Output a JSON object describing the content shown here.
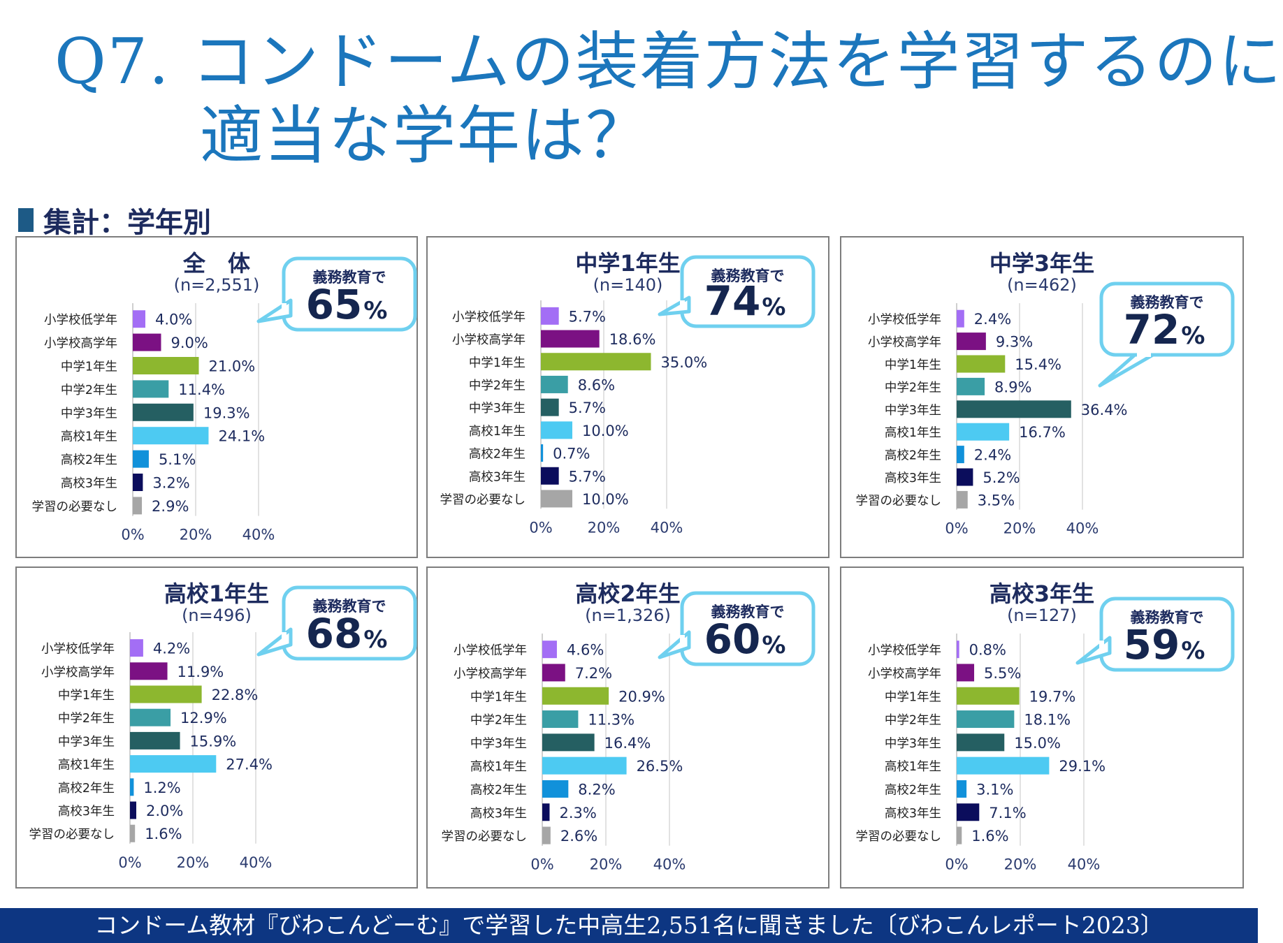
{
  "title": {
    "line1": "Q7. コンドームの装着方法を学習するのに",
    "line2": "適当な学年は？"
  },
  "section_label": "集計：学年別",
  "footer": "コンドーム教材『びわこんどーむ』で学習した中高生2,551名に聞きました〔びわこんレポート2023〕",
  "bubble_label": "義務教育で",
  "categories": [
    "小学校低学年",
    "小学校高学年",
    "中学1年生",
    "中学2年生",
    "中学3年生",
    "高校1年生",
    "高校2年生",
    "高校3年生",
    "学習の必要なし"
  ],
  "category_colors": [
    "#a36ef5",
    "#7b1183",
    "#8db72f",
    "#3a9ea5",
    "#255f62",
    "#4dcaf2",
    "#1191da",
    "#0b0d5c",
    "#a6a6a6"
  ],
  "axis_ticks": [
    "0%",
    "20%",
    "40%"
  ],
  "panels": [
    {
      "title": "全　体",
      "n": "(n=2,551)",
      "compulsory": "65",
      "pct_sign": "%"
    },
    {
      "title": "中学1年生",
      "n": "(n=140)",
      "compulsory": "74",
      "pct_sign": "%"
    },
    {
      "title": "中学3年生",
      "n": "(n=462)",
      "compulsory": "72",
      "pct_sign": "%"
    },
    {
      "title": "高校1年生",
      "n": "(n=496)",
      "compulsory": "68",
      "pct_sign": "%"
    },
    {
      "title": "高校2年生",
      "n": "(n=1,326)",
      "compulsory": "60",
      "pct_sign": "%"
    },
    {
      "title": "高校3年生",
      "n": "(n=127)",
      "compulsory": "59",
      "pct_sign": "%"
    }
  ],
  "chart_data": [
    {
      "type": "bar",
      "orientation": "horizontal",
      "title": "全　体",
      "subtitle": "(n=2,551)",
      "categories": [
        "小学校低学年",
        "小学校高学年",
        "中学1年生",
        "中学2年生",
        "中学3年生",
        "高校1年生",
        "高校2年生",
        "高校3年生",
        "学習の必要なし"
      ],
      "values": [
        4.0,
        9.0,
        21.0,
        11.4,
        19.3,
        24.1,
        5.1,
        3.2,
        2.9
      ],
      "labels": [
        "4.0%",
        "9.0%",
        "21.0%",
        "11.4%",
        "19.3%",
        "24.1%",
        "5.1%",
        "3.2%",
        "2.9%"
      ],
      "xlim": [
        0,
        40
      ],
      "grid": true
    },
    {
      "type": "bar",
      "orientation": "horizontal",
      "title": "中学1年生",
      "subtitle": "(n=140)",
      "categories": [
        "小学校低学年",
        "小学校高学年",
        "中学1年生",
        "中学2年生",
        "中学3年生",
        "高校1年生",
        "高校2年生",
        "高校3年生",
        "学習の必要なし"
      ],
      "values": [
        5.7,
        18.6,
        35.0,
        8.6,
        5.7,
        10.0,
        0.7,
        5.7,
        10.0
      ],
      "labels": [
        "5.7%",
        "18.6%",
        "35.0%",
        "8.6%",
        "5.7%",
        "10.0%",
        "0.7%",
        "5.7%",
        "10.0%"
      ],
      "xlim": [
        0,
        40
      ],
      "grid": true
    },
    {
      "type": "bar",
      "orientation": "horizontal",
      "title": "中学3年生",
      "subtitle": "(n=462)",
      "categories": [
        "小学校低学年",
        "小学校高学年",
        "中学1年生",
        "中学2年生",
        "中学3年生",
        "高校1年生",
        "高校2年生",
        "高校3年生",
        "学習の必要なし"
      ],
      "values": [
        2.4,
        9.3,
        15.4,
        8.9,
        36.4,
        16.7,
        2.4,
        5.2,
        3.5
      ],
      "labels": [
        "2.4%",
        "9.3%",
        "15.4%",
        "8.9%",
        "36.4%",
        "16.7%",
        "2.4%",
        "5.2%",
        "3.5%"
      ],
      "xlim": [
        0,
        40
      ],
      "grid": true
    },
    {
      "type": "bar",
      "orientation": "horizontal",
      "title": "高校1年生",
      "subtitle": "(n=496)",
      "categories": [
        "小学校低学年",
        "小学校高学年",
        "中学1年生",
        "中学2年生",
        "中学3年生",
        "高校1年生",
        "高校2年生",
        "高校3年生",
        "学習の必要なし"
      ],
      "values": [
        4.2,
        11.9,
        22.8,
        12.9,
        15.9,
        27.4,
        1.2,
        2.0,
        1.6
      ],
      "labels": [
        "4.2%",
        "11.9%",
        "22.8%",
        "12.9%",
        "15.9%",
        "27.4%",
        "1.2%",
        "2.0%",
        "1.6%"
      ],
      "xlim": [
        0,
        40
      ],
      "grid": true
    },
    {
      "type": "bar",
      "orientation": "horizontal",
      "title": "高校2年生",
      "subtitle": "(n=1,326)",
      "categories": [
        "小学校低学年",
        "小学校高学年",
        "中学1年生",
        "中学2年生",
        "中学3年生",
        "高校1年生",
        "高校2年生",
        "高校3年生",
        "学習の必要なし"
      ],
      "values": [
        4.6,
        7.2,
        20.9,
        11.3,
        16.4,
        26.5,
        8.2,
        2.3,
        2.6
      ],
      "labels": [
        "4.6%",
        "7.2%",
        "20.9%",
        "11.3%",
        "16.4%",
        "26.5%",
        "8.2%",
        "2.3%",
        "2.6%"
      ],
      "xlim": [
        0,
        40
      ],
      "grid": true
    },
    {
      "type": "bar",
      "orientation": "horizontal",
      "title": "高校3年生",
      "subtitle": "(n=127)",
      "categories": [
        "小学校低学年",
        "小学校高学年",
        "中学1年生",
        "中学2年生",
        "中学3年生",
        "高校1年生",
        "高校2年生",
        "高校3年生",
        "学習の必要なし"
      ],
      "values": [
        0.8,
        5.5,
        19.7,
        18.1,
        15.0,
        29.1,
        3.1,
        7.1,
        1.6
      ],
      "labels": [
        "0.8%",
        "5.5%",
        "19.7%",
        "18.1%",
        "15.0%",
        "29.1%",
        "3.1%",
        "7.1%",
        "1.6%"
      ],
      "xlim": [
        0,
        40
      ],
      "grid": true
    }
  ]
}
